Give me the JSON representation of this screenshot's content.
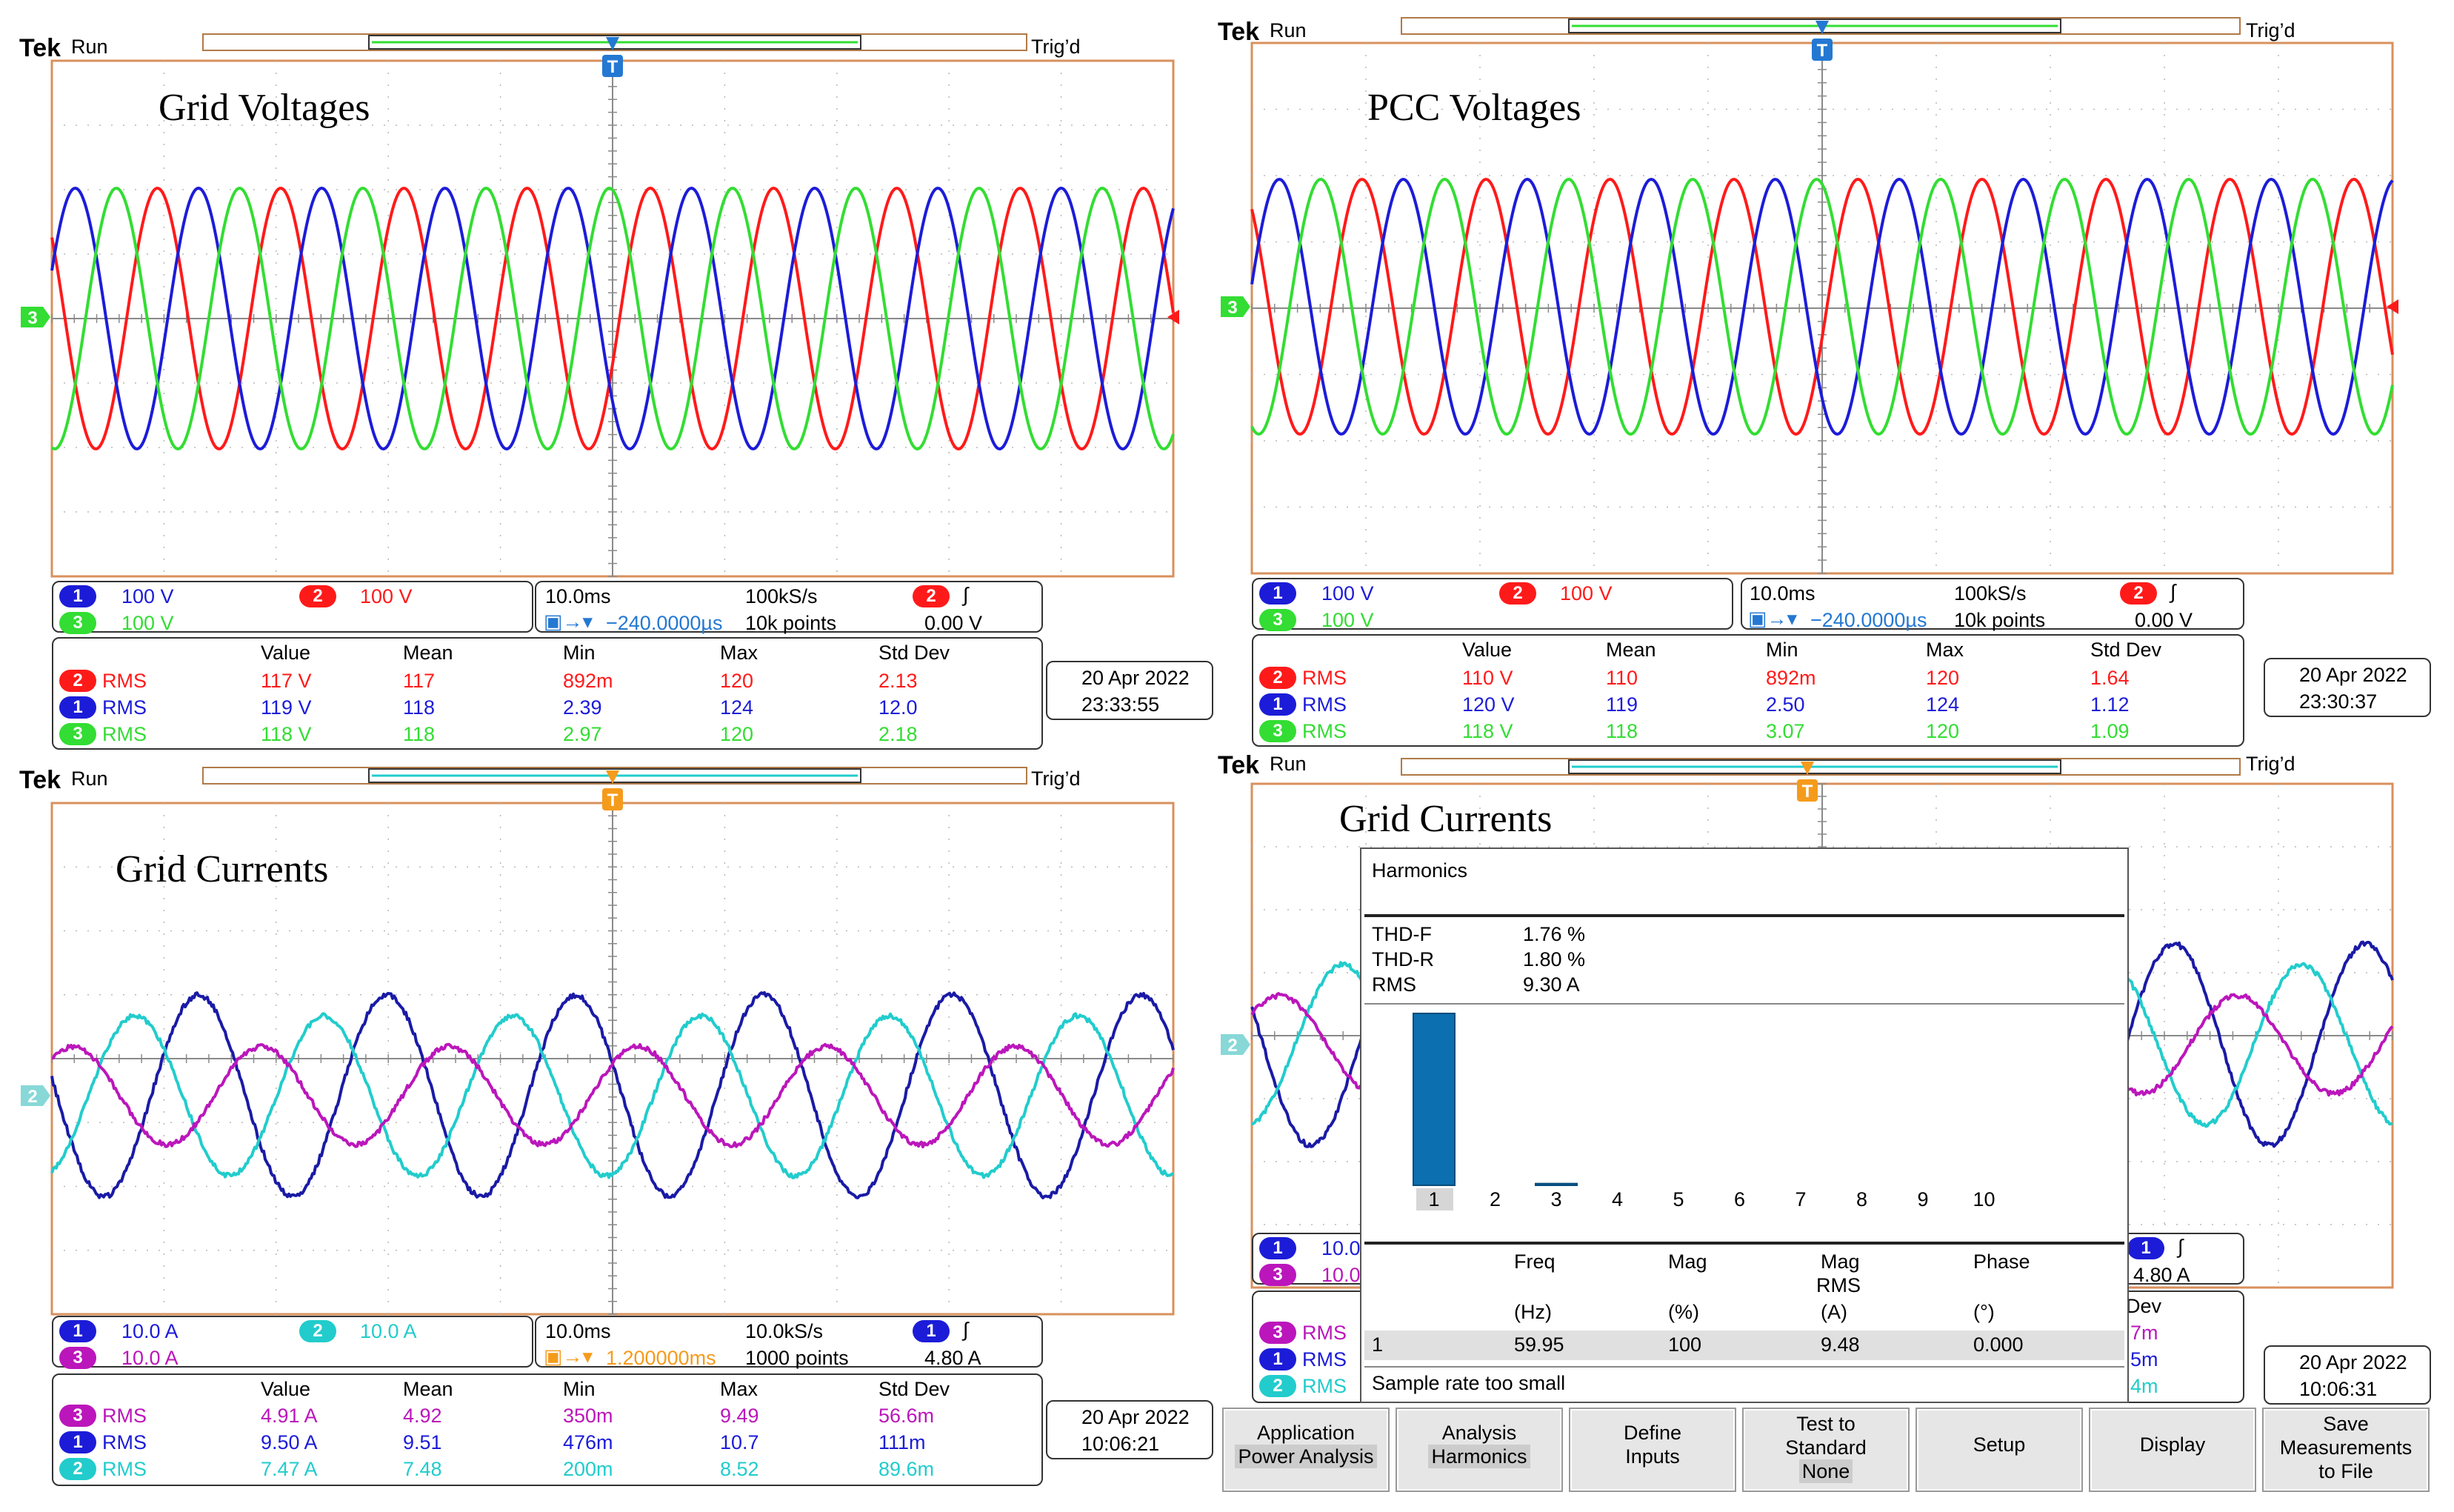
{
  "colors": {
    "ch_blue": "#1c1cd8",
    "ch_red": "#ff1a1a",
    "ch_green": "#33dd33",
    "ch_magenta": "#bb16bb",
    "ch_cyan": "#22cccc",
    "navy": "#1a1aa6",
    "trig_orange": "#f59b1c",
    "trig_blue": "#2478d2",
    "grid": "#b9b9b9",
    "graticule_border": "#d9905c"
  },
  "scope": {
    "brand": "Tek",
    "run": "Run",
    "trigd": "Trig’d",
    "trig_marker": "T"
  },
  "panels": [
    {
      "title": "Grid Voltages",
      "channels": [
        {
          "num": "1",
          "label": "100 V"
        },
        {
          "num": "2",
          "label": "100 V"
        },
        {
          "num": "3",
          "label": "100 V"
        }
      ],
      "ground_marker": "3",
      "timebase": {
        "div": "10.0ms",
        "rate": "100kS/s",
        "delay": "−240.0000µs",
        "points": "10k points",
        "trig_ch": "2",
        "trig_level": "0.00 V"
      },
      "meas_headers": [
        "Value",
        "Mean",
        "Min",
        "Max",
        "Std Dev"
      ],
      "meas": [
        {
          "ch": "2",
          "name": "RMS",
          "vals": [
            "117 V",
            "117",
            "892m",
            "120",
            "2.13"
          ]
        },
        {
          "ch": "1",
          "name": "RMS",
          "vals": [
            "119 V",
            "118",
            "2.39",
            "124",
            "12.0"
          ]
        },
        {
          "ch": "3",
          "name": "RMS",
          "vals": [
            "118 V",
            "118",
            "2.97",
            "120",
            "2.18"
          ]
        }
      ],
      "date": "20 Apr  2022",
      "time": "23:33:55"
    },
    {
      "title": "PCC Voltages",
      "channels": [
        {
          "num": "1",
          "label": "100 V"
        },
        {
          "num": "2",
          "label": "100 V"
        },
        {
          "num": "3",
          "label": "100 V"
        }
      ],
      "ground_marker": "3",
      "timebase": {
        "div": "10.0ms",
        "rate": "100kS/s",
        "delay": "−240.0000µs",
        "points": "10k points",
        "trig_ch": "2",
        "trig_level": "0.00 V"
      },
      "meas_headers": [
        "Value",
        "Mean",
        "Min",
        "Max",
        "Std Dev"
      ],
      "meas": [
        {
          "ch": "2",
          "name": "RMS",
          "vals": [
            "110 V",
            "110",
            "892m",
            "120",
            "1.64"
          ]
        },
        {
          "ch": "1",
          "name": "RMS",
          "vals": [
            "120 V",
            "119",
            "2.50",
            "124",
            "1.12"
          ]
        },
        {
          "ch": "3",
          "name": "RMS",
          "vals": [
            "118 V",
            "118",
            "3.07",
            "120",
            "1.09"
          ]
        }
      ],
      "date": "20 Apr  2022",
      "time": "23:30:37"
    },
    {
      "title": "Grid Currents",
      "channels": [
        {
          "num": "1",
          "label": "10.0 A"
        },
        {
          "num": "2",
          "label": "10.0 A"
        },
        {
          "num": "3",
          "label": "10.0 A"
        }
      ],
      "ground_marker": "2",
      "timebase": {
        "div": "10.0ms",
        "rate": "10.0kS/s",
        "delay": "1.200000ms",
        "points": "1000 points",
        "trig_ch": "1",
        "trig_level": "4.80 A"
      },
      "meas_headers": [
        "Value",
        "Mean",
        "Min",
        "Max",
        "Std Dev"
      ],
      "meas": [
        {
          "ch": "3",
          "name": "RMS",
          "vals": [
            "4.91 A",
            "4.92",
            "350m",
            "9.49",
            "56.6m"
          ]
        },
        {
          "ch": "1",
          "name": "RMS",
          "vals": [
            "9.50 A",
            "9.51",
            "476m",
            "10.7",
            "111m"
          ]
        },
        {
          "ch": "2",
          "name": "RMS",
          "vals": [
            "7.47 A",
            "7.48",
            "200m",
            "8.52",
            "89.6m"
          ]
        }
      ],
      "date": "20 Apr  2022",
      "time": "10:06:21"
    },
    {
      "title": "Grid Currents",
      "channels": [
        {
          "num": "1",
          "label": "10.0"
        },
        {
          "num": "3",
          "label": "10.0"
        }
      ],
      "ground_marker": "2",
      "timebase": {
        "trig_ch": "1",
        "trig_level": "4.80 A"
      },
      "meas_header_partial": "Dev",
      "meas": [
        {
          "ch": "3",
          "name": "RMS",
          "tail": "7m"
        },
        {
          "ch": "1",
          "name": "RMS",
          "tail": "5m"
        },
        {
          "ch": "2",
          "name": "RMS",
          "tail": "4m"
        }
      ],
      "date": "20 Apr  2022",
      "time": "10:06:31"
    }
  ],
  "harmonics": {
    "title": "Harmonics",
    "thd_f_label": "THD-F",
    "thd_f": "1.76 %",
    "thd_r_label": "THD-R",
    "thd_r": "1.80 %",
    "rms_label": "RMS",
    "rms": "9.30 A",
    "orders": [
      "1",
      "2",
      "3",
      "4",
      "5",
      "6",
      "7",
      "8",
      "9",
      "10"
    ],
    "magnitudes_pct": [
      100,
      0,
      1.0,
      0,
      0,
      0,
      0,
      0,
      0,
      0
    ],
    "headers": [
      "Freq",
      "Mag",
      "Mag",
      "Phase"
    ],
    "header_sub": "RMS",
    "units": [
      "(Hz)",
      "(%)",
      "(A)",
      "(°)"
    ],
    "row": {
      "n": "1",
      "freq": "59.95",
      "mag": "100",
      "mag_rms": "9.48",
      "phase": "0.000"
    },
    "status": "Sample rate too small"
  },
  "menu": [
    {
      "line1": "Application",
      "line2": "Power Analysis"
    },
    {
      "line1": "Analysis",
      "line2": "Harmonics"
    },
    {
      "line1": "Define",
      "line2": "Inputs"
    },
    {
      "line1": "Test to",
      "line2": "Standard",
      "line3": "None"
    },
    {
      "line1": "Setup"
    },
    {
      "line1": "Display"
    },
    {
      "line1": "Save",
      "line2": "Measurements",
      "line3": "to File"
    }
  ]
}
